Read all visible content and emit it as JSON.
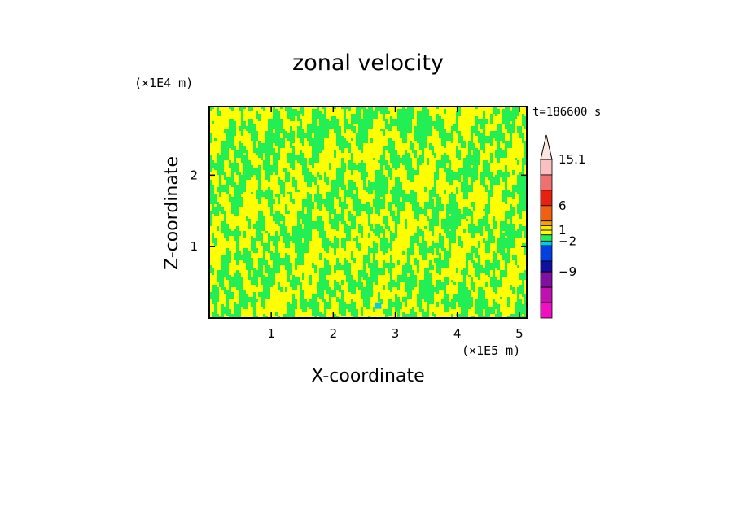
{
  "chart_data": {
    "type": "heatmap",
    "title": "zonal velocity",
    "xlabel": "X-coordinate",
    "ylabel": "Z-coordinate",
    "x_unit": "(×1E5 m)",
    "y_unit": "(×1E4 m)",
    "time_label": "t=186600 s",
    "xlim": [
      0,
      5.12
    ],
    "ylim": [
      0,
      2.96
    ],
    "x_ticks": [
      1,
      2,
      3,
      4,
      5
    ],
    "y_ticks": [
      1,
      2
    ],
    "field": {
      "dominant_colors": [
        "#ffff00",
        "#22ee55"
      ],
      "note_color": "#00ccee"
    },
    "colorbar": {
      "extend": "max",
      "labels": [
        {
          "value": 15.1,
          "text": "15.1"
        },
        {
          "value": 6,
          "text": "6"
        },
        {
          "value": 1,
          "text": "1"
        },
        {
          "value": -2,
          "text": "−2"
        },
        {
          "value": -9,
          "text": "−9"
        }
      ],
      "colors_top_to_bottom": [
        "#f8c0c0",
        "#f07070",
        "#e82010",
        "#f06010",
        "#f8a000",
        "#f8e800",
        "#ffff00",
        "#22ee55",
        "#00c8f0",
        "#0040e0",
        "#1010a0",
        "#8010a0",
        "#c010b0",
        "#f010c0"
      ]
    }
  }
}
